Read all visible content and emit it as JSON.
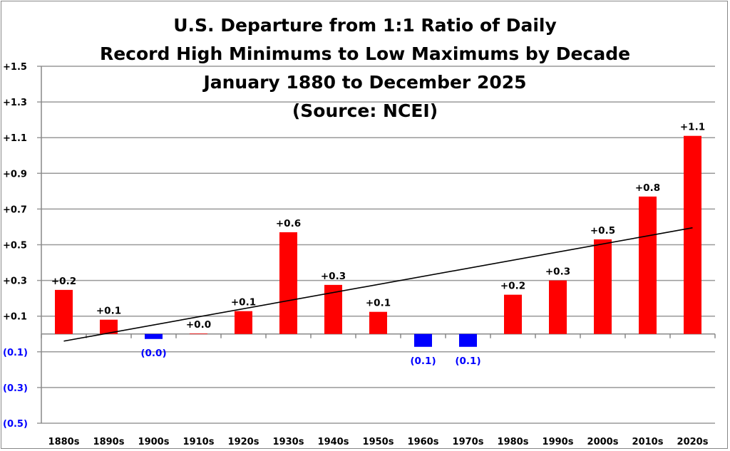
{
  "chart_data": {
    "type": "bar",
    "title_lines": [
      "U.S. Departure from 1:1 Ratio of Daily",
      "Record High Minimums to Low Maximums by Decade",
      "January 1880 to December 2025",
      "(Source: NCEI)"
    ],
    "xlabel": "",
    "ylabel": "",
    "ylim": [
      -0.5,
      1.5
    ],
    "yticks": [
      -0.5,
      -0.3,
      -0.1,
      0.1,
      0.3,
      0.5,
      0.7,
      0.9,
      1.1,
      1.3,
      1.5
    ],
    "ytick_labels": [
      "(0.5)",
      "(0.3)",
      "(0.1)",
      "+0.1",
      "+0.3",
      "+0.5",
      "+0.7",
      "+0.9",
      "+1.1",
      "+1.3",
      "+1.5"
    ],
    "categories": [
      "1880s",
      "1890s",
      "1900s",
      "1910s",
      "1920s",
      "1930s",
      "1940s",
      "1950s",
      "1960s",
      "1970s",
      "1980s",
      "1990s",
      "2000s",
      "2010s",
      "2020s"
    ],
    "values": [
      0.247,
      0.08,
      -0.028,
      0.003,
      0.128,
      0.57,
      0.275,
      0.124,
      -0.072,
      -0.072,
      0.22,
      0.3,
      0.53,
      0.77,
      1.11
    ],
    "data_labels": [
      "+0.2",
      "+0.1",
      "(0.0)",
      "+0.0",
      "+0.1",
      "+0.6",
      "+0.3",
      "+0.1",
      "(0.1)",
      "(0.1)",
      "+0.2",
      "+0.3",
      "+0.5",
      "+0.8",
      "+1.1"
    ],
    "trendline": {
      "type": "linear",
      "start": -0.04,
      "end": 0.595,
      "color": "#000000"
    },
    "grid": true,
    "colors": {
      "positive": "#ff0000",
      "negative": "#0000ff",
      "negative_label": "#0000ff",
      "grid": "#999999"
    }
  }
}
